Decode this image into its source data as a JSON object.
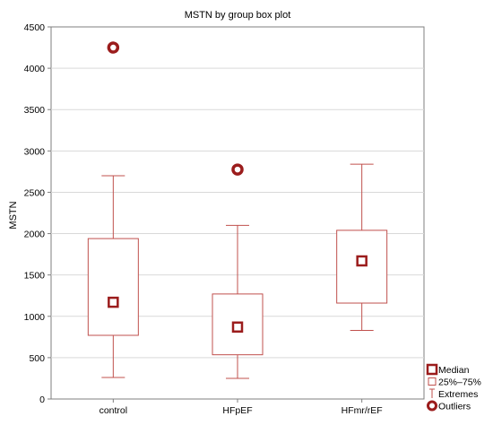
{
  "chart_data": {
    "type": "box",
    "title": "MSTN by group box plot",
    "xlabel": "",
    "ylabel": "MSTN",
    "ylim": [
      0,
      4500
    ],
    "yticks": [
      0,
      500,
      1000,
      1500,
      2000,
      2500,
      3000,
      3500,
      4000,
      4500
    ],
    "grid": true,
    "categories": [
      "control",
      "HFpEF",
      "HFmr/rEF"
    ],
    "boxes": [
      {
        "category": "control",
        "min": 260,
        "q1": 770,
        "median": 1170,
        "q3": 1940,
        "max": 2700,
        "outliers": [
          4250
        ]
      },
      {
        "category": "HFpEF",
        "min": 250,
        "q1": 535,
        "median": 870,
        "q3": 1270,
        "max": 2100,
        "outliers": [
          2775
        ]
      },
      {
        "category": "HFmr/rEF",
        "min": 830,
        "q1": 1160,
        "median": 1670,
        "q3": 2040,
        "max": 2840,
        "outliers": []
      }
    ],
    "legend": {
      "placement": "bottom-right",
      "items": [
        "Median",
        "25%–75%",
        "Extremes",
        "Outliers"
      ]
    },
    "colors": {
      "box": "#c0504d",
      "marker": "#9b1c1c",
      "grid": "#d9d9d9",
      "axis": "#7f7f7f"
    }
  }
}
